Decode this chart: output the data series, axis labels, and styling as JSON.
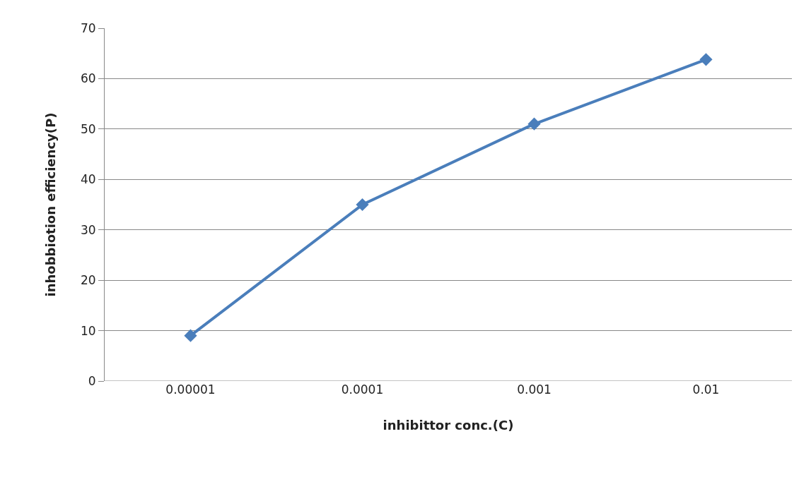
{
  "chart_data": {
    "type": "line",
    "xlabel": "inhibittor conc.(C)",
    "ylabel": "inhobbiotion efficiency(P)",
    "categories": [
      "0.00001",
      "0.0001",
      "0.001",
      "0.01"
    ],
    "series": [
      {
        "color": "#4a7ebb",
        "values": [
          9,
          35,
          51,
          63.8
        ]
      }
    ],
    "ylim": [
      0,
      70
    ],
    "yticks": [
      0,
      10,
      20,
      30,
      40,
      50,
      60,
      70
    ],
    "grid": "y",
    "marker": "diamond",
    "line_style": "solid"
  }
}
